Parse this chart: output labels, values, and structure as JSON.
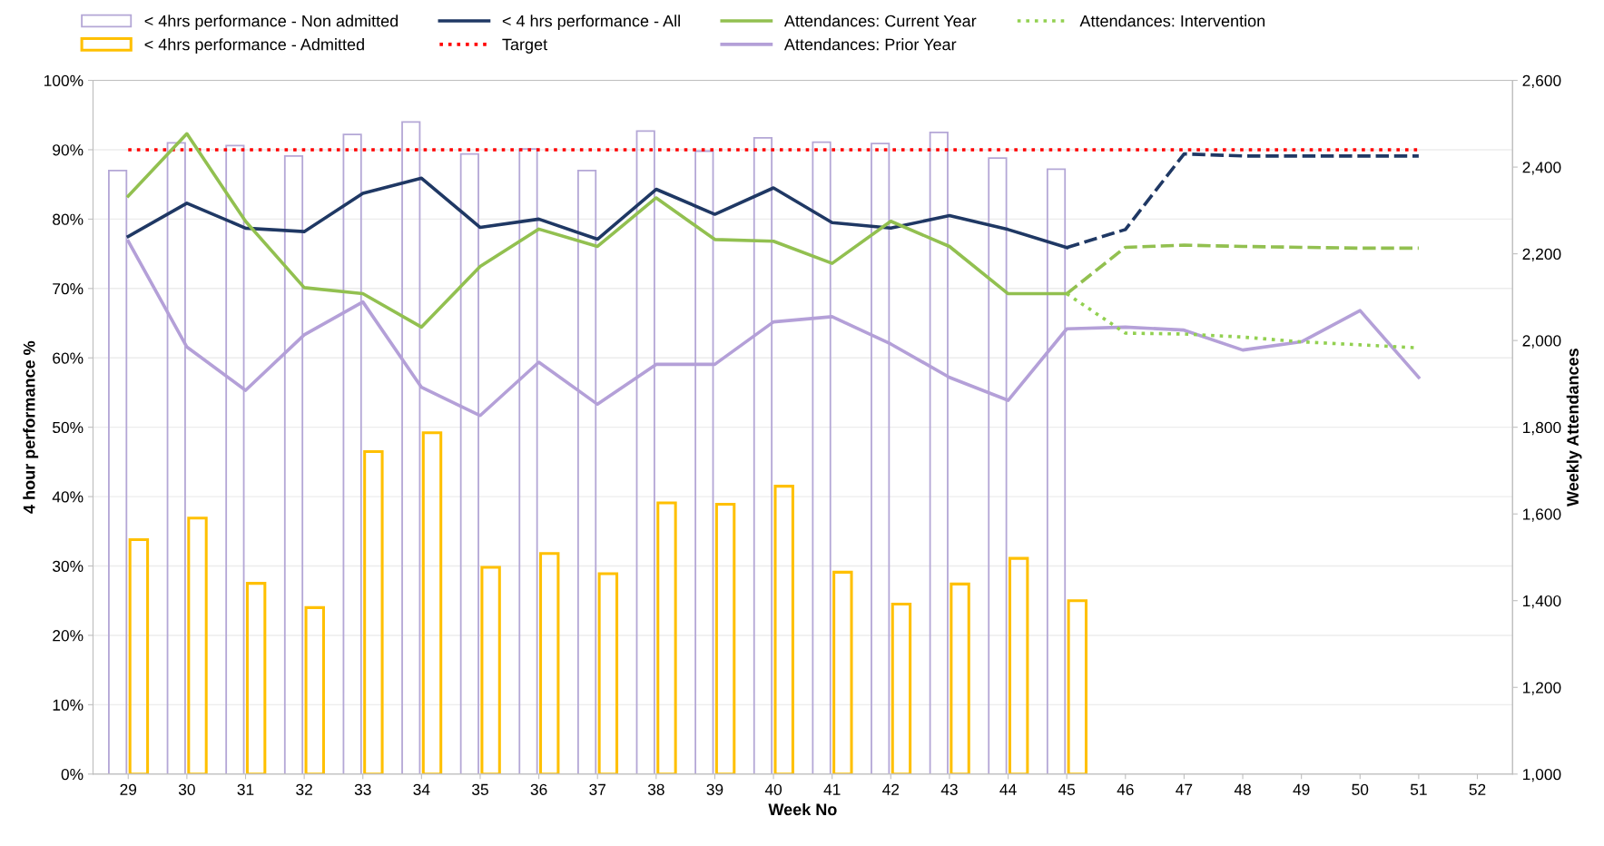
{
  "chart_data": {
    "type": "bar",
    "xlabel": "Week No",
    "ylabel": "4 hour performance %",
    "y2label": "Weekly Attendances",
    "categories": [
      "29",
      "30",
      "31",
      "32",
      "33",
      "34",
      "35",
      "36",
      "37",
      "38",
      "39",
      "40",
      "41",
      "42",
      "43",
      "44",
      "45",
      "46",
      "47",
      "48",
      "49",
      "50",
      "51",
      "52"
    ],
    "series": [
      {
        "name": "< 4hrs performance - Non admitted",
        "color": "#b4a7d6",
        "values": [
          87,
          91,
          90.6,
          89.1,
          92.2,
          94,
          89.4,
          90.1,
          87,
          92.7,
          89.8,
          91.7,
          91.1,
          90.9,
          92.5,
          88.8,
          87.2,
          null,
          null,
          null,
          null,
          null,
          null,
          null
        ]
      },
      {
        "name": "< 4hrs performance - Admitted",
        "color": "#ffc000",
        "values": [
          33.8,
          36.9,
          27.5,
          24,
          46.5,
          49.2,
          29.8,
          31.8,
          28.9,
          39.1,
          38.9,
          41.5,
          29.1,
          24.5,
          27.4,
          31.1,
          25,
          null,
          null,
          null,
          null,
          null,
          null,
          null
        ]
      },
      {
        "name": "< 4 hrs performance - All",
        "type": "line",
        "color": "#1f3864",
        "line_style": "solid",
        "values": [
          77.5,
          82.3,
          78.7,
          78.2,
          83.7,
          85.9,
          78.8,
          80,
          77.1,
          84.3,
          80.7,
          84.5,
          79.5,
          78.7,
          80.5,
          78.5,
          75.9,
          null,
          null,
          null,
          null,
          null,
          null,
          null
        ]
      },
      {
        "type": "line",
        "color": "#1f3864",
        "line_style": "dashed",
        "values": [
          null,
          null,
          null,
          null,
          null,
          null,
          null,
          null,
          null,
          null,
          null,
          null,
          null,
          null,
          null,
          null,
          75.9,
          78.5,
          89.4,
          89.1,
          89.1,
          89.1,
          89.1,
          null
        ]
      },
      {
        "name": "Target",
        "type": "line",
        "color": "#ff0000",
        "line_style": "dotted",
        "values": [
          90,
          90,
          90,
          90,
          90,
          90,
          90,
          90,
          90,
          90,
          90,
          90,
          90,
          90,
          90,
          90,
          90,
          90,
          90,
          90,
          90,
          90,
          90,
          null
        ]
      },
      {
        "name": "Attendances: Current Year",
        "type": "line",
        "axis": "y2",
        "color": "#92c050",
        "line_style": "solid",
        "values": [
          2333,
          2477,
          2275,
          2122,
          2108,
          2031,
          2171,
          2257,
          2217,
          2329,
          2233,
          2229,
          2178,
          2275,
          2217,
          2108,
          2108,
          null,
          null,
          null,
          null,
          null,
          null,
          null
        ]
      },
      {
        "type": "line",
        "axis": "y2",
        "color": "#92c050",
        "line_style": "dashed",
        "values": [
          null,
          null,
          null,
          null,
          null,
          null,
          null,
          null,
          null,
          null,
          null,
          null,
          null,
          null,
          null,
          null,
          2108,
          2215,
          2220,
          2217,
          2215,
          2213,
          2213,
          null
        ]
      },
      {
        "name": "Attendances: Prior Year",
        "type": "line",
        "axis": "y2",
        "color": "#b4a0d8",
        "line_style": "solid",
        "values": [
          2229,
          1985,
          1885,
          2013,
          2089,
          1892,
          1827,
          1950,
          1853,
          1945,
          1945,
          2043,
          2055,
          1992,
          1915,
          1862,
          2027,
          2031,
          2024,
          1978,
          1997,
          2069,
          1915,
          null
        ]
      },
      {
        "name": "Attendances: Intervention",
        "type": "line",
        "axis": "y2",
        "color": "#92d050",
        "line_style": "dotted",
        "values": [
          null,
          null,
          null,
          null,
          null,
          null,
          null,
          null,
          null,
          null,
          null,
          null,
          null,
          null,
          null,
          null,
          2108,
          2017,
          2015,
          2008,
          1997,
          1990,
          1983,
          null
        ]
      }
    ],
    "ylim": [
      0,
      100
    ],
    "yticks": [
      {
        "value": 0,
        "label": "0%"
      },
      {
        "value": 10,
        "label": "10%"
      },
      {
        "value": 20,
        "label": "20%"
      },
      {
        "value": 30,
        "label": "30%"
      },
      {
        "value": 40,
        "label": "40%"
      },
      {
        "value": 50,
        "label": "50%"
      },
      {
        "value": 60,
        "label": "60%"
      },
      {
        "value": 70,
        "label": "70%"
      },
      {
        "value": 80,
        "label": "80%"
      },
      {
        "value": 90,
        "label": "90%"
      },
      {
        "value": 100,
        "label": "100%"
      }
    ],
    "y2lim": [
      1000,
      2600
    ],
    "y2ticks": [
      {
        "value": 1000,
        "label": "1,000"
      },
      {
        "value": 1200,
        "label": "1,200"
      },
      {
        "value": 1400,
        "label": "1,400"
      },
      {
        "value": 1600,
        "label": "1,600"
      },
      {
        "value": 1800,
        "label": "1,800"
      },
      {
        "value": 2000,
        "label": "2,000"
      },
      {
        "value": 2200,
        "label": "2,200"
      },
      {
        "value": 2400,
        "label": "2,400"
      },
      {
        "value": 2600,
        "label": "2,600"
      }
    ],
    "grid": "y",
    "legend": "top"
  }
}
